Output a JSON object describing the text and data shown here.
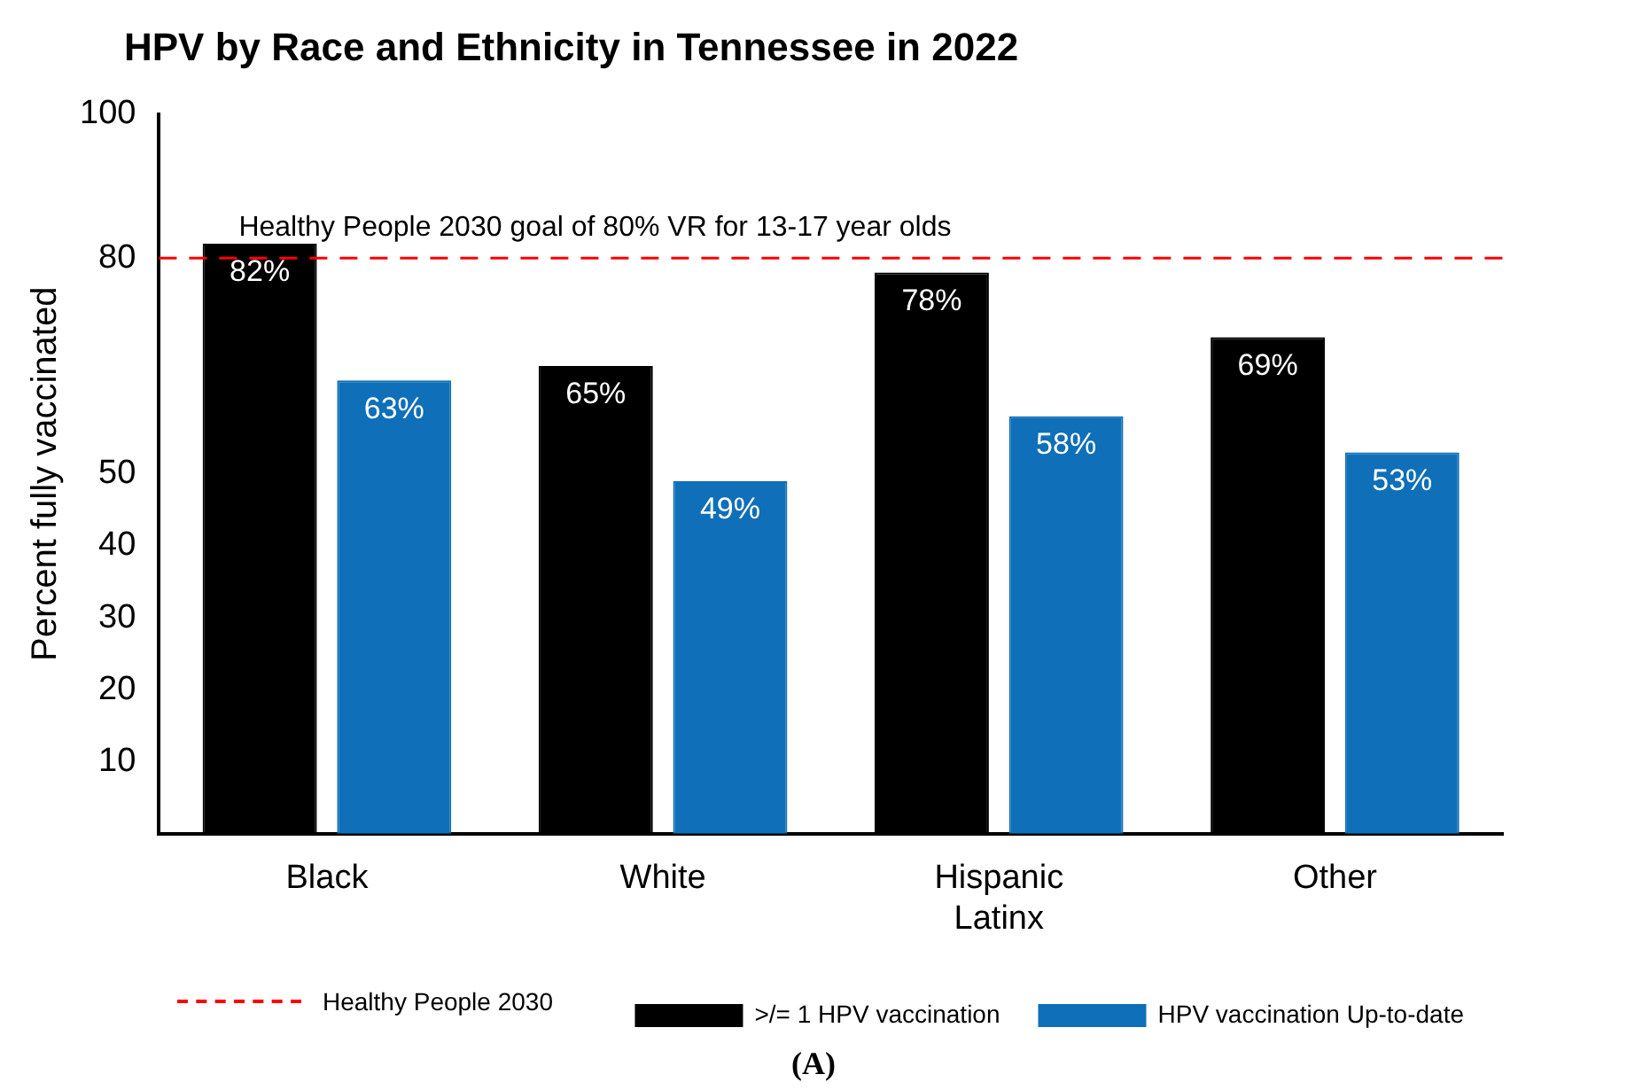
{
  "chart_data": {
    "type": "bar",
    "title": "HPV by Race and Ethnicity in Tennessee in 2022",
    "ylabel": "Percent fully vaccinated",
    "categories": [
      "Black",
      "White",
      "Hispanic\nLatinx",
      "Other"
    ],
    "series": [
      {
        "name": ">/= 1 HPV vaccination",
        "color": "#000000",
        "values": [
          82,
          65,
          78,
          69
        ],
        "value_labels": [
          "82%",
          "65%",
          "78%",
          "69%"
        ]
      },
      {
        "name": "HPV vaccination Up-to-date",
        "color": "#0f6fb8",
        "values": [
          63,
          49,
          58,
          53
        ],
        "value_labels": [
          "63%",
          "49%",
          "58%",
          "53%"
        ]
      }
    ],
    "ylim": [
      0,
      100
    ],
    "yticks": [
      10,
      20,
      30,
      40,
      50,
      80,
      100
    ],
    "ref_lines": [
      {
        "axis": "y",
        "value": 80,
        "label": "Healthy People 2030 goal of 80% VR for 13-17 year olds",
        "color": "#ff0000",
        "line_style": "dashed"
      }
    ],
    "annotations": [
      "Healthy People 2030",
      "(A)"
    ],
    "legend": "bottom",
    "grid": false
  }
}
